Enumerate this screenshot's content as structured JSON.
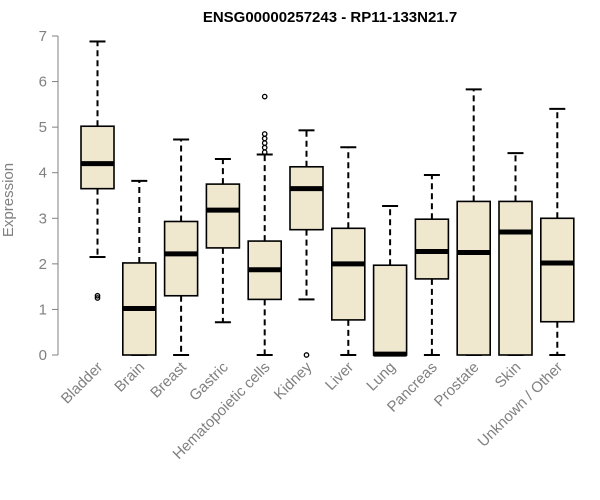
{
  "chart_data": {
    "type": "boxplot",
    "title": "ENSG00000257243 - RP11-133N21.7",
    "xlabel": "",
    "ylabel": "Expression",
    "ylim": [
      0,
      7
    ],
    "yticks": [
      0,
      1,
      2,
      3,
      4,
      5,
      6,
      7
    ],
    "categories": [
      "Bladder",
      "Brain",
      "Breast",
      "Gastric",
      "Hematopoietic cells",
      "Kidney",
      "Liver",
      "Lung",
      "Pancreas",
      "Prostate",
      "Skin",
      "Unknown / Other"
    ],
    "boxes": [
      {
        "category": "Bladder",
        "whisker_low": 2.15,
        "q1": 3.65,
        "median": 4.2,
        "q3": 5.02,
        "whisker_high": 6.88,
        "outliers": [
          1.25,
          1.3
        ]
      },
      {
        "category": "Brain",
        "whisker_low": 0.0,
        "q1": 0.0,
        "median": 1.02,
        "q3": 2.02,
        "whisker_high": 3.82,
        "outliers": []
      },
      {
        "category": "Breast",
        "whisker_low": 0.0,
        "q1": 1.3,
        "median": 2.22,
        "q3": 2.93,
        "whisker_high": 4.73,
        "outliers": []
      },
      {
        "category": "Gastric",
        "whisker_low": 0.72,
        "q1": 2.35,
        "median": 3.18,
        "q3": 3.75,
        "whisker_high": 4.3,
        "outliers": []
      },
      {
        "category": "Hematopoietic cells",
        "whisker_low": 0.0,
        "q1": 1.22,
        "median": 1.87,
        "q3": 2.5,
        "whisker_high": 4.4,
        "outliers": [
          4.45,
          4.55,
          4.65,
          4.75,
          4.85,
          5.67
        ]
      },
      {
        "category": "Kidney",
        "whisker_low": 1.22,
        "q1": 2.75,
        "median": 3.65,
        "q3": 4.13,
        "whisker_high": 4.93,
        "outliers": [
          0.0
        ]
      },
      {
        "category": "Liver",
        "whisker_low": 0.0,
        "q1": 0.77,
        "median": 2.0,
        "q3": 2.78,
        "whisker_high": 4.56,
        "outliers": []
      },
      {
        "category": "Lung",
        "whisker_low": 0.0,
        "q1": 0.0,
        "median": 0.02,
        "q3": 1.97,
        "whisker_high": 3.27,
        "outliers": []
      },
      {
        "category": "Pancreas",
        "whisker_low": 0.0,
        "q1": 1.67,
        "median": 2.27,
        "q3": 2.98,
        "whisker_high": 3.95,
        "outliers": []
      },
      {
        "category": "Prostate",
        "whisker_low": 0.0,
        "q1": 0.0,
        "median": 2.25,
        "q3": 3.37,
        "whisker_high": 5.83,
        "outliers": []
      },
      {
        "category": "Skin",
        "whisker_low": 0.0,
        "q1": 0.0,
        "median": 2.7,
        "q3": 3.37,
        "whisker_high": 4.43,
        "outliers": []
      },
      {
        "category": "Unknown / Other",
        "whisker_low": 0.0,
        "q1": 0.73,
        "median": 2.02,
        "q3": 3.0,
        "whisker_high": 5.4,
        "outliers": []
      }
    ],
    "colors": {
      "box_fill": "#efe8cf",
      "box_stroke": "#000000",
      "axis": "#808080",
      "title": "#000000"
    }
  }
}
